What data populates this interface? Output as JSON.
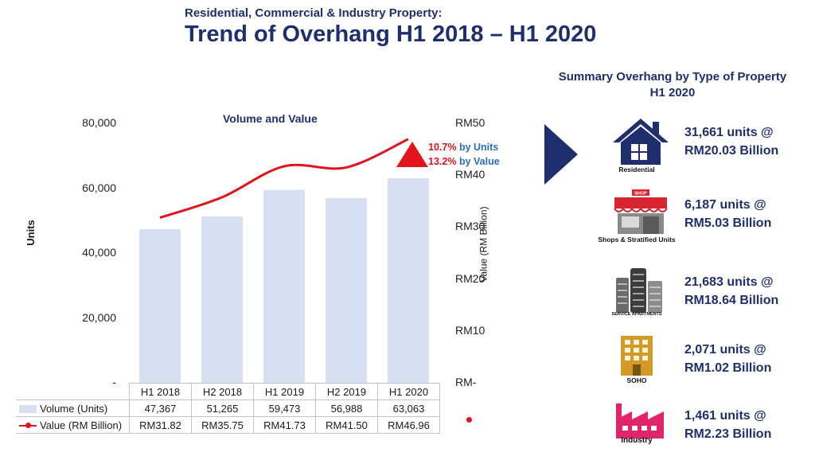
{
  "header": {
    "supertitle": "Residential, Commercial & Industry Property:",
    "title": "Trend of Overhang H1 2018 – H1 2020"
  },
  "chart_data": {
    "type": "bar",
    "title": "Volume and Value",
    "categories": [
      "H1 2018",
      "H2 2018",
      "H1 2019",
      "H2 2019",
      "H1 2020"
    ],
    "series": [
      {
        "name": "Volume (Units)",
        "type": "bar",
        "axis": "left",
        "values": [
          47367,
          51265,
          59473,
          56988,
          63063
        ],
        "labels": [
          "47,367",
          "51,265",
          "59,473",
          "56,988",
          "63,063"
        ]
      },
      {
        "name": "Value (RM Billion)",
        "type": "line",
        "axis": "right",
        "values": [
          31.82,
          35.75,
          41.73,
          41.5,
          46.96
        ],
        "labels": [
          "RM31.82",
          "RM35.75",
          "RM41.73",
          "RM41.50",
          "RM46.96"
        ]
      }
    ],
    "ylabel": "Units",
    "ylabel_right": "Value (RM Billion)",
    "ylim": [
      0,
      80000
    ],
    "ylim_right": [
      0,
      50
    ],
    "yticks": [
      {
        "value": 0,
        "label": "-"
      },
      {
        "value": 20000,
        "label": "20,000"
      },
      {
        "value": 40000,
        "label": "40,000"
      },
      {
        "value": 60000,
        "label": "60,000"
      },
      {
        "value": 80000,
        "label": "80,000"
      }
    ],
    "yticks_right": [
      {
        "value": 0,
        "label": "RM-"
      },
      {
        "value": 10,
        "label": "RM10"
      },
      {
        "value": 20,
        "label": "RM20"
      },
      {
        "value": 30,
        "label": "RM30"
      },
      {
        "value": 40,
        "label": "RM40"
      },
      {
        "value": 50,
        "label": "RM50"
      }
    ],
    "annotations": [
      {
        "pct": "10.7%",
        "text": "by Units"
      },
      {
        "pct": "13.2%",
        "text": "by Value"
      }
    ],
    "grid": false,
    "legend": "table-bottom"
  },
  "summary": {
    "title_line1": "Summary Overhang by Type of Property",
    "title_line2": "H1 2020",
    "items": [
      {
        "caption": "Residential",
        "line1": "31,661 units @",
        "line2": "RM20.03 Billion",
        "icon": "house-icon"
      },
      {
        "caption": "Shops & Stratified Units",
        "sign": "SHOP",
        "line1": "6,187 units @",
        "line2": "RM5.03 Billion",
        "icon": "shop-icon"
      },
      {
        "caption": "SERVICE APARTMENTS",
        "line1": "21,683 units @",
        "line2": "RM18.64 Billion",
        "icon": "apartment-towers-icon"
      },
      {
        "caption": "SOHO",
        "line1": "2,071 units @",
        "line2": "RM1.02 Billion",
        "icon": "office-building-icon"
      },
      {
        "caption": "Industry",
        "line1": "1,461 units @",
        "line2": "RM2.23 Billion",
        "icon": "factory-icon"
      }
    ]
  },
  "colors": {
    "title": "#1f2f6e",
    "bar": "#d6e0f2",
    "line": "#e0141a",
    "annotation_text": "#2c6fb5",
    "shop": "#d72631",
    "soho": "#d39a2a",
    "factory": "#e2256a",
    "house": "#1f2f6e"
  }
}
